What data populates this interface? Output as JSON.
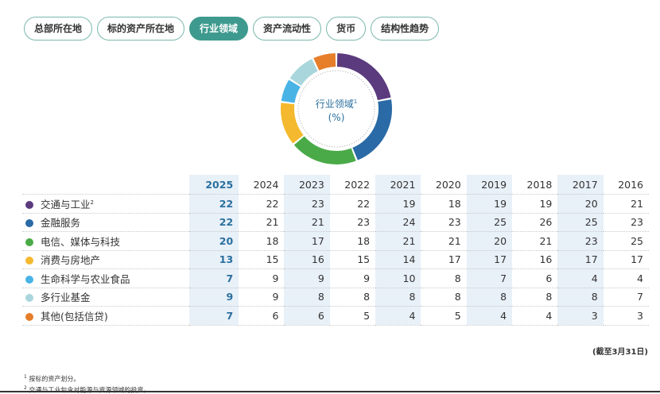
{
  "tabs": [
    "总部所在地",
    "标的资产所在地",
    "行业领域",
    "资产流动性",
    "货币",
    "结构性趋势"
  ],
  "active_tab": 2,
  "donut": {
    "title": "行业领域",
    "title_sup": "1",
    "unit": "(%)"
  },
  "colors": {
    "accent": "#2a6f9e",
    "tab_active": "#3e9a8e",
    "highlight_column": "#e8f0f8"
  },
  "as_of_note": "(截至3月31日)",
  "footnotes": [
    {
      "sup": "1",
      "text": "按标的资产划分。"
    },
    {
      "sup": "2",
      "text": "交通与工业包含对能源与资源领域的投资。"
    }
  ],
  "chart_data": {
    "type": "table",
    "years": [
      "2025",
      "2024",
      "2023",
      "2022",
      "2021",
      "2020",
      "2019",
      "2018",
      "2017",
      "2016"
    ],
    "shaded_year_indices": [
      0,
      2,
      4,
      6,
      8
    ],
    "rows": [
      {
        "name": "交通与工业",
        "sup": "2",
        "color": "#5b3a7e",
        "values": [
          22,
          22,
          23,
          22,
          19,
          18,
          19,
          19,
          20,
          21
        ]
      },
      {
        "name": "金融服务",
        "sup": "",
        "color": "#2a6aa6",
        "values": [
          22,
          21,
          21,
          23,
          24,
          23,
          25,
          26,
          25,
          23
        ]
      },
      {
        "name": "电信、媒体与科技",
        "sup": "",
        "color": "#4aaa48",
        "values": [
          20,
          18,
          17,
          18,
          21,
          21,
          20,
          21,
          23,
          25
        ]
      },
      {
        "name": "消费与房地产",
        "sup": "",
        "color": "#f4b92e",
        "values": [
          13,
          15,
          16,
          15,
          14,
          17,
          17,
          16,
          17,
          17
        ]
      },
      {
        "name": "生命科学与农业食品",
        "sup": "",
        "color": "#4ab3e6",
        "values": [
          7,
          9,
          9,
          9,
          10,
          8,
          7,
          6,
          4,
          4
        ]
      },
      {
        "name": "多行业基金",
        "sup": "",
        "color": "#a9d6dc",
        "values": [
          9,
          9,
          8,
          8,
          8,
          8,
          8,
          8,
          8,
          7
        ]
      },
      {
        "name": "其他(包括信贷)",
        "sup": "",
        "color": "#e67e2a",
        "values": [
          7,
          6,
          6,
          5,
          4,
          5,
          4,
          4,
          3,
          3
        ]
      }
    ],
    "donut_year_index": 0
  }
}
